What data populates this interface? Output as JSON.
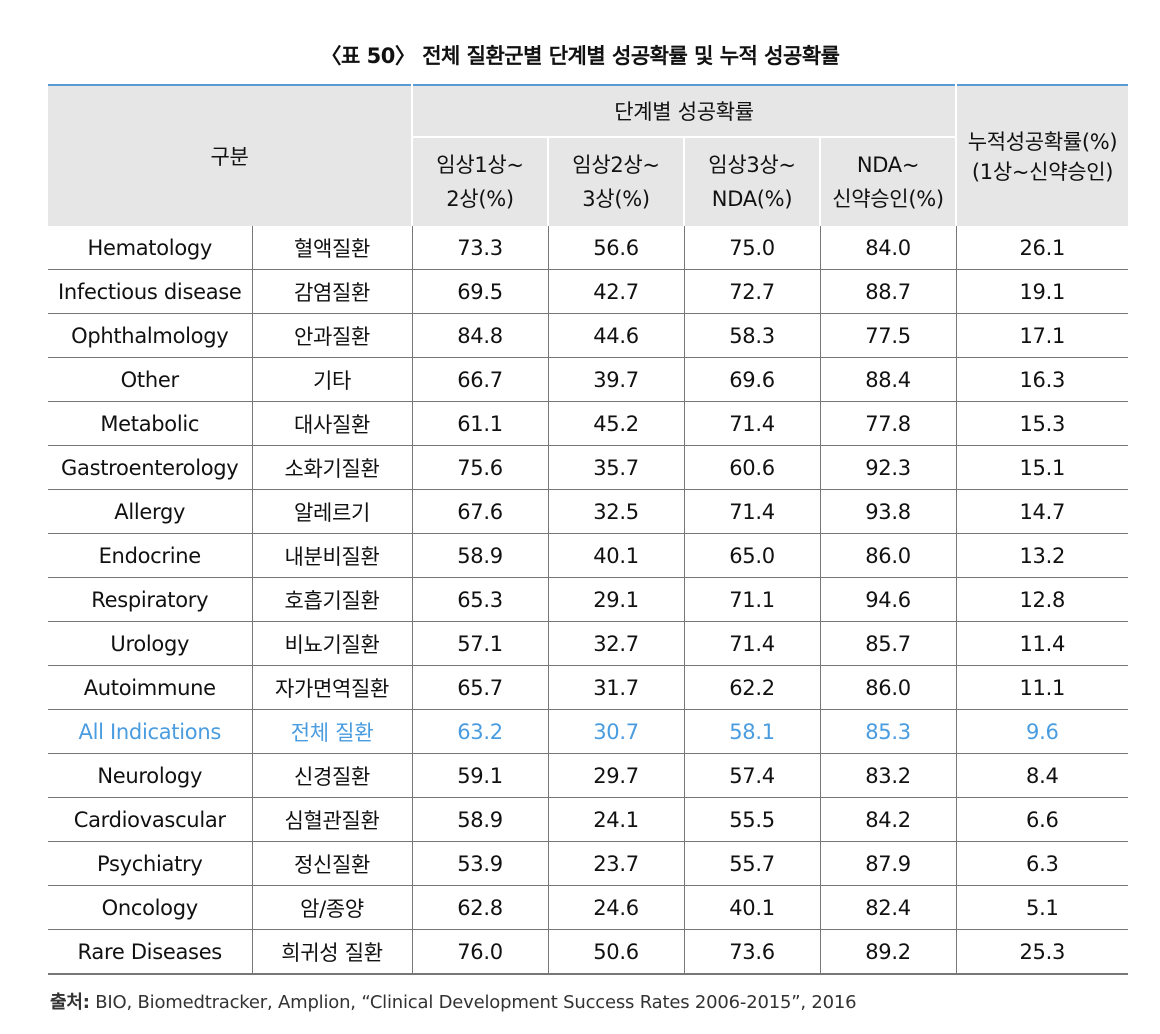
{
  "title": "〈표 50〉 전체 질환군별 단계별 성공확률 및 누적 성공확률",
  "header": {
    "gubun": "구분",
    "stage_group": "단계별 성공확률",
    "sub": [
      {
        "line1": "임상1상~",
        "line2": "2상(%)"
      },
      {
        "line1": "임상2상~",
        "line2": "3상(%)"
      },
      {
        "line1": "임상3상~",
        "line2": "NDA(%)"
      },
      {
        "line1": "NDA~",
        "line2": "신약승인(%)"
      }
    ],
    "cumulative": {
      "line1": "누적성공확률(%)",
      "line2": "(1상~신약승인)"
    }
  },
  "highlight_color": "#4a9ce0",
  "rows": [
    {
      "en": "Hematology",
      "ko": "혈액질환",
      "p1": "73.3",
      "p2": "56.6",
      "p3": "75.0",
      "p4": "84.0",
      "cum": "26.1"
    },
    {
      "en": "Infectious disease",
      "ko": "감염질환",
      "p1": "69.5",
      "p2": "42.7",
      "p3": "72.7",
      "p4": "88.7",
      "cum": "19.1"
    },
    {
      "en": "Ophthalmology",
      "ko": "안과질환",
      "p1": "84.8",
      "p2": "44.6",
      "p3": "58.3",
      "p4": "77.5",
      "cum": "17.1"
    },
    {
      "en": "Other",
      "ko": "기타",
      "p1": "66.7",
      "p2": "39.7",
      "p3": "69.6",
      "p4": "88.4",
      "cum": "16.3"
    },
    {
      "en": "Metabolic",
      "ko": "대사질환",
      "p1": "61.1",
      "p2": "45.2",
      "p3": "71.4",
      "p4": "77.8",
      "cum": "15.3"
    },
    {
      "en": "Gastroenterology",
      "ko": "소화기질환",
      "p1": "75.6",
      "p2": "35.7",
      "p3": "60.6",
      "p4": "92.3",
      "cum": "15.1"
    },
    {
      "en": "Allergy",
      "ko": "알레르기",
      "p1": "67.6",
      "p2": "32.5",
      "p3": "71.4",
      "p4": "93.8",
      "cum": "14.7"
    },
    {
      "en": "Endocrine",
      "ko": "내분비질환",
      "p1": "58.9",
      "p2": "40.1",
      "p3": "65.0",
      "p4": "86.0",
      "cum": "13.2"
    },
    {
      "en": "Respiratory",
      "ko": "호흡기질환",
      "p1": "65.3",
      "p2": "29.1",
      "p3": "71.1",
      "p4": "94.6",
      "cum": "12.8"
    },
    {
      "en": "Urology",
      "ko": "비뇨기질환",
      "p1": "57.1",
      "p2": "32.7",
      "p3": "71.4",
      "p4": "85.7",
      "cum": "11.4"
    },
    {
      "en": "Autoimmune",
      "ko": "자가면역질환",
      "p1": "65.7",
      "p2": "31.7",
      "p3": "62.2",
      "p4": "86.0",
      "cum": "11.1"
    },
    {
      "en": "All Indications",
      "ko": "전체 질환",
      "p1": "63.2",
      "p2": "30.7",
      "p3": "58.1",
      "p4": "85.3",
      "cum": "9.6",
      "highlight": true
    },
    {
      "en": "Neurology",
      "ko": "신경질환",
      "p1": "59.1",
      "p2": "29.7",
      "p3": "57.4",
      "p4": "83.2",
      "cum": "8.4"
    },
    {
      "en": "Cardiovascular",
      "ko": "심혈관질환",
      "p1": "58.9",
      "p2": "24.1",
      "p3": "55.5",
      "p4": "84.2",
      "cum": "6.6"
    },
    {
      "en": "Psychiatry",
      "ko": "정신질환",
      "p1": "53.9",
      "p2": "23.7",
      "p3": "55.7",
      "p4": "87.9",
      "cum": "6.3"
    },
    {
      "en": "Oncology",
      "ko": "암/종양",
      "p1": "62.8",
      "p2": "24.6",
      "p3": "40.1",
      "p4": "82.4",
      "cum": "5.1"
    },
    {
      "en": "Rare Diseases",
      "ko": "희귀성 질환",
      "p1": "76.0",
      "p2": "50.6",
      "p3": "73.6",
      "p4": "89.2",
      "cum": "25.3"
    }
  ],
  "source": {
    "label": "출처:",
    "text": " BIO, Biomedtracker, Amplion, “Clinical Development Success Rates 2006-2015”, 2016"
  }
}
